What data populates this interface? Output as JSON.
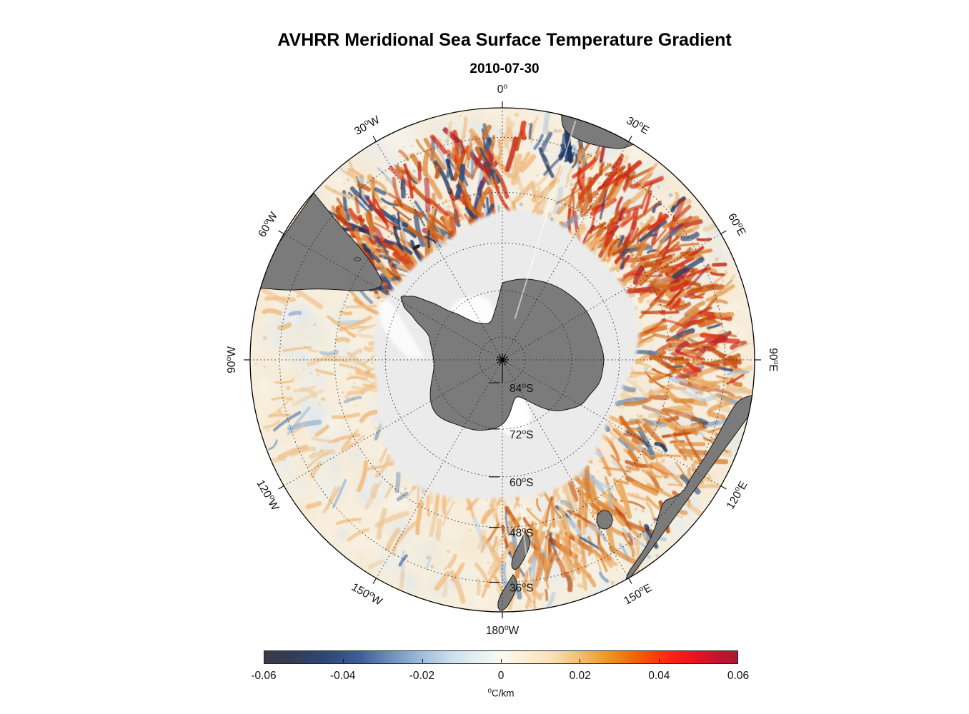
{
  "figure": {
    "title": "AVHRR Meridional Sea Surface Temperature Gradient",
    "subtitle": "2010-07-30"
  },
  "chart_data": {
    "type": "heatmap",
    "projection": "south_polar_stereographic",
    "title": "AVHRR Meridional Sea Surface Temperature Gradient",
    "date": "2010-07-30",
    "quantity": "meridional sea surface temperature gradient",
    "units_sup": "o",
    "units_text": "C/km",
    "map": {
      "outer_latitude": -30,
      "pole_marker": "asterisk",
      "land_color": "#7b7b7b",
      "sea_ice_color": "#ebebeb",
      "ocean_base_color": "#f7eedd",
      "meridian_labels": [
        {
          "az": 0,
          "num": "0",
          "hem": ""
        },
        {
          "az": 30,
          "num": "30",
          "hem": "E"
        },
        {
          "az": 60,
          "num": "60",
          "hem": "E"
        },
        {
          "az": 90,
          "num": "90",
          "hem": "E"
        },
        {
          "az": 120,
          "num": "120",
          "hem": "E"
        },
        {
          "az": 150,
          "num": "150",
          "hem": "E"
        },
        {
          "az": 180,
          "num": "180",
          "hem": "W"
        },
        {
          "az": 210,
          "num": "150",
          "hem": "W"
        },
        {
          "az": 240,
          "num": "120",
          "hem": "W"
        },
        {
          "az": 270,
          "num": "90",
          "hem": "W"
        },
        {
          "az": 300,
          "num": "60",
          "hem": "W"
        },
        {
          "az": 330,
          "num": "30",
          "hem": "W"
        }
      ],
      "parallel_labels": [
        {
          "lat": -84,
          "num": "84",
          "hem": "S"
        },
        {
          "lat": -72,
          "num": "72",
          "hem": "S"
        },
        {
          "lat": -60,
          "num": "60",
          "hem": "S"
        },
        {
          "lat": -48,
          "num": "48",
          "hem": "S"
        },
        {
          "lat": -36,
          "num": "36",
          "hem": "S"
        }
      ],
      "land_masses": [
        "Antarctica",
        "Antarctic Peninsula",
        "South America",
        "South Africa",
        "Australia",
        "Tasmania",
        "New Zealand",
        "South Georgia"
      ]
    },
    "colorbar": {
      "orientation": "horizontal",
      "min": -0.06,
      "max": 0.06,
      "tick_labels": [
        "-0.06",
        "-0.04",
        "-0.02",
        "0",
        "0.02",
        "0.04",
        "0.06"
      ],
      "colormap_stops": [
        {
          "pos": 0,
          "color": "#3a3a43"
        },
        {
          "pos": 6,
          "color": "#333c55"
        },
        {
          "pos": 13,
          "color": "#2d4878"
        },
        {
          "pos": 20,
          "color": "#3c5d96"
        },
        {
          "pos": 27,
          "color": "#6d93bf"
        },
        {
          "pos": 33,
          "color": "#9dbcda"
        },
        {
          "pos": 40,
          "color": "#cfe1ef"
        },
        {
          "pos": 46,
          "color": "#e9f2f0"
        },
        {
          "pos": 50,
          "color": "#fbfaf2"
        },
        {
          "pos": 55,
          "color": "#fdeed6"
        },
        {
          "pos": 61,
          "color": "#fadfb2"
        },
        {
          "pos": 67,
          "color": "#f4bc6a"
        },
        {
          "pos": 72,
          "color": "#ee9b28"
        },
        {
          "pos": 77,
          "color": "#ee7108"
        },
        {
          "pos": 82,
          "color": "#f64405"
        },
        {
          "pos": 86,
          "color": "#fb2410"
        },
        {
          "pos": 91,
          "color": "#e5151f"
        },
        {
          "pos": 96,
          "color": "#c2152b"
        },
        {
          "pos": 100,
          "color": "#a61b30"
        }
      ]
    },
    "features": [
      {
        "name": "agulhas-return-red-band",
        "az": [
          20,
          95
        ],
        "r": [
          0.64,
          0.97
        ],
        "strength": 1.0,
        "cool": 0.08
      },
      {
        "name": "agulhas-blue-band",
        "az": [
          3,
          32
        ],
        "r": [
          0.84,
          0.96
        ],
        "strength": 0.95,
        "cool": 0.78
      },
      {
        "name": "atlantic-confluence-band",
        "az": [
          298,
          358
        ],
        "r": [
          0.56,
          0.95
        ],
        "strength": 0.95,
        "cool": 0.3
      },
      {
        "name": "indian-pacific-band",
        "az": [
          95,
          178
        ],
        "r": [
          0.6,
          0.97
        ],
        "strength": 0.68,
        "cool": 0.15
      },
      {
        "name": "australia-coastal-cool",
        "az": [
          100,
          155
        ],
        "r": [
          0.84,
          0.985
        ],
        "strength": 0.5,
        "cool": 0.55
      },
      {
        "name": "acc-mid-ring",
        "az": [
          0,
          360
        ],
        "r": [
          0.52,
          0.94
        ],
        "strength": 0.45,
        "cool": 0.12
      },
      {
        "name": "pacific-quiet-sector",
        "az": [
          185,
          292
        ],
        "r": [
          0.45,
          1.0
        ],
        "damp": 0.55
      }
    ]
  }
}
